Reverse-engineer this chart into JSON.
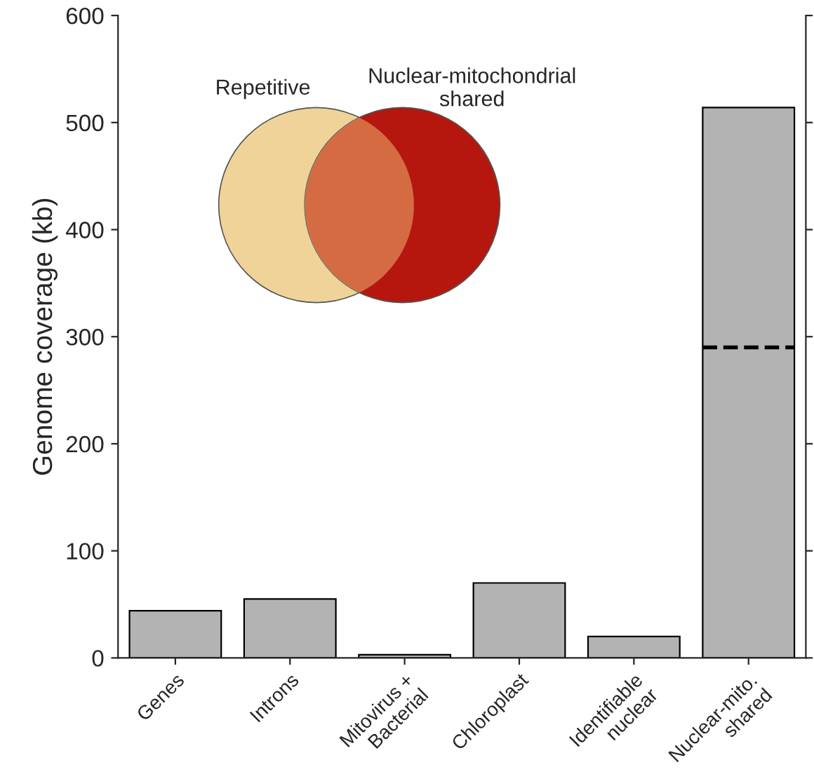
{
  "chart_data": {
    "type": "bar",
    "ylabel": "Genome coverage (kb)",
    "categories": [
      "Genes",
      "Introns",
      "Mitovirus +\nBacterial",
      "Chloroplast",
      "Identifiable\nnuclear",
      "Nuclear-mito.\nshared"
    ],
    "values": [
      44,
      55,
      3,
      70,
      20,
      514
    ],
    "color": "#b3b3b3",
    "ylim": [
      0,
      600
    ],
    "yticks": [
      0,
      100,
      200,
      300,
      400,
      500,
      600
    ],
    "grid": false,
    "ref_lines": [
      {
        "axis": "y",
        "value": 290,
        "line_style": "dashed",
        "color": "#000000"
      }
    ],
    "annotations": [
      "Repetitive",
      "Nuclear-mitochondrial\nshared"
    ]
  }
}
